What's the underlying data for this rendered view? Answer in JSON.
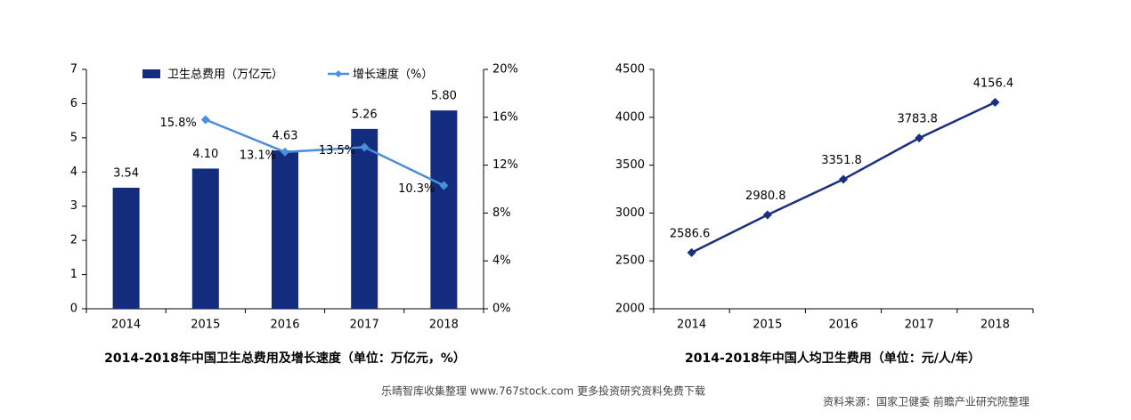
{
  "chart_data": [
    {
      "type": "bar",
      "title": "2014-2018年中国卫生总费用及增长速度（单位：万亿元，%）",
      "categories": [
        "2014",
        "2015",
        "2016",
        "2017",
        "2018"
      ],
      "series": [
        {
          "name": "卫生总费用（万亿元）",
          "type": "bar",
          "color": "#132c7e",
          "values": [
            3.54,
            4.1,
            4.63,
            5.26,
            5.8
          ],
          "value_labels": [
            "3.54",
            "4.10",
            "4.63",
            "5.26",
            "5.80"
          ]
        },
        {
          "name": "增长速度（%）",
          "type": "line",
          "axis": "y2",
          "color": "#4a8fdc",
          "values": [
            null,
            15.8,
            13.1,
            13.5,
            10.3
          ],
          "value_labels": [
            null,
            "15.8%",
            "13.1%",
            "13.5%",
            "10.3%"
          ]
        }
      ],
      "ylim": [
        0,
        7
      ],
      "yticks": [
        0,
        1,
        2,
        3,
        4,
        5,
        6,
        7
      ],
      "y2lim": [
        0,
        20
      ],
      "y2ticks": [
        {
          "value": 0,
          "label": "0%"
        },
        {
          "value": 4,
          "label": "4%"
        },
        {
          "value": 8,
          "label": "8%"
        },
        {
          "value": 12,
          "label": "12%"
        },
        {
          "value": 16,
          "label": "16%"
        },
        {
          "value": 20,
          "label": "20%"
        }
      ],
      "legend": "top"
    },
    {
      "type": "line",
      "title": "2014-2018年中国人均卫生费用（单位：元/人/年）",
      "categories": [
        "2014",
        "2015",
        "2016",
        "2017",
        "2018"
      ],
      "series": [
        {
          "name": "人均卫生费用",
          "color": "#1a2f80",
          "values": [
            2586.6,
            2980.8,
            3351.8,
            3783.8,
            4156.4
          ]
        }
      ],
      "ylim": [
        2000,
        4500
      ],
      "yticks": [
        2000,
        2500,
        3000,
        3500,
        4000,
        4500
      ]
    }
  ],
  "footer": {
    "left": "乐晴智库收集整理 www.767stock.com 更多投资研究资料免费下载",
    "source": "资料来源：国家卫健委 前瞻产业研究院整理"
  }
}
